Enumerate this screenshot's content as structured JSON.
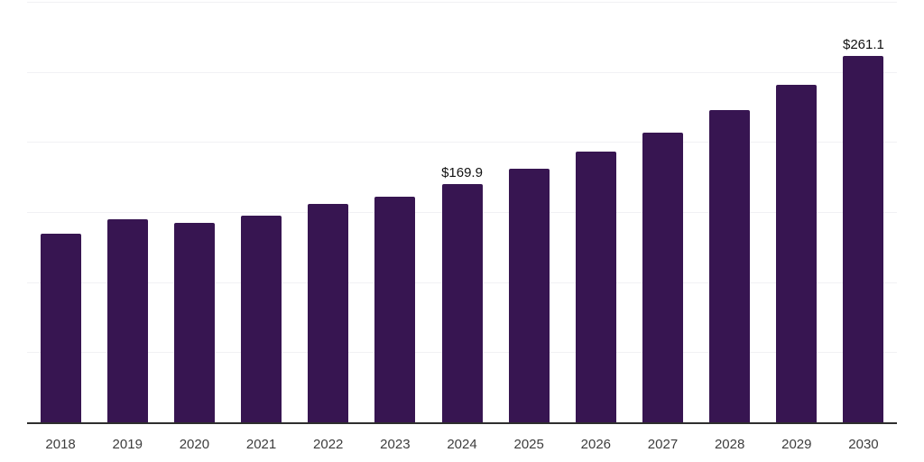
{
  "chart_data": {
    "type": "bar",
    "title": "",
    "xlabel": "",
    "ylabel": "",
    "categories": [
      "2018",
      "2019",
      "2020",
      "2021",
      "2022",
      "2023",
      "2024",
      "2025",
      "2026",
      "2027",
      "2028",
      "2029",
      "2030"
    ],
    "values": [
      134.8,
      144.9,
      142.1,
      147.7,
      155.6,
      161.0,
      169.9,
      180.7,
      193.0,
      206.5,
      222.6,
      240.8,
      261.1
    ],
    "data_labels": [
      "",
      "",
      "",
      "",
      "",
      "",
      "$169.9",
      "",
      "",
      "",
      "",
      "",
      "$261.1"
    ],
    "ylim": [
      0,
      300
    ],
    "gridline_values": [
      50,
      100,
      150,
      200,
      250,
      300
    ],
    "grid_on": true,
    "legend": "none",
    "y_axis_labels_visible": false,
    "colors": {
      "bar": "#371551",
      "axis_line": "#2e2e2e",
      "gridline": "#f1f1f4",
      "tick_label": "#3d3d3d",
      "data_label": "#111111",
      "background": "#ffffff"
    }
  }
}
